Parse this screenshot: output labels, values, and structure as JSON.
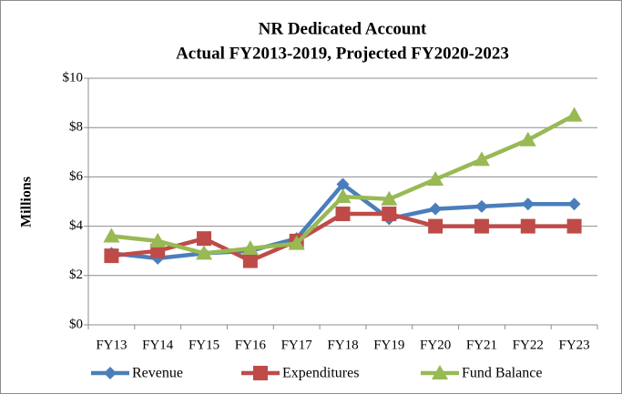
{
  "chart_data": {
    "type": "line",
    "title": "NR Dedicated Account",
    "subtitle": "Actual FY2013-2019, Projected FY2020-2023",
    "y_label": "Millions",
    "categories": [
      "FY13",
      "FY14",
      "FY15",
      "FY16",
      "FY17",
      "FY18",
      "FY19",
      "FY20",
      "FY21",
      "FY22",
      "FY23"
    ],
    "series": [
      {
        "name": "Revenue",
        "color": "#4a7ebb",
        "marker": "diamond",
        "values": [
          2.9,
          2.7,
          2.9,
          3.0,
          3.5,
          5.7,
          4.3,
          4.7,
          4.8,
          4.9,
          4.9
        ]
      },
      {
        "name": "Expenditures",
        "color": "#be4b48",
        "marker": "square",
        "values": [
          2.8,
          3.0,
          3.5,
          2.6,
          3.4,
          4.5,
          4.5,
          4.0,
          4.0,
          4.0,
          4.0
        ]
      },
      {
        "name": "Fund Balance",
        "color": "#98b954",
        "marker": "triangle",
        "values": [
          3.6,
          3.4,
          2.9,
          3.1,
          3.3,
          5.2,
          5.1,
          5.9,
          6.7,
          7.5,
          8.5
        ]
      }
    ],
    "ylim": [
      0,
      10
    ],
    "yticks": [
      {
        "value": 0,
        "label": "$0"
      },
      {
        "value": 2,
        "label": "$2"
      },
      {
        "value": 4,
        "label": "$4"
      },
      {
        "value": 6,
        "label": "$6"
      },
      {
        "value": 8,
        "label": "$8"
      },
      {
        "value": 10,
        "label": "$10"
      }
    ],
    "grid": true,
    "legend": "bottom"
  }
}
